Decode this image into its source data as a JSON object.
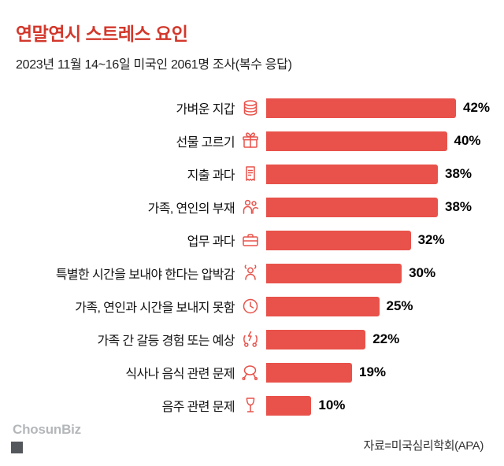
{
  "header": {
    "title": "연말연시 스트레스 요인",
    "subtitle": "2023년 11월 14~16일 미국인 2061명 조사(복수 응답)"
  },
  "chart_data": {
    "type": "bar",
    "orientation": "horizontal",
    "title": "연말연시 스트레스 요인",
    "categories": [
      "가벼운 지갑",
      "선물 고르기",
      "지출 과다",
      "가족, 연인의 부재",
      "업무 과다",
      "특별한 시간을 보내야 한다는 압박감",
      "가족, 연인과 시간을 보내지 못함",
      "가족 간 갈등 경험 또는 예상",
      "식사나 음식 관련 문제",
      "음주 관련 문제"
    ],
    "values": [
      42,
      40,
      38,
      38,
      32,
      30,
      25,
      22,
      19,
      10
    ],
    "value_labels": [
      "42%",
      "40%",
      "38%",
      "38%",
      "32%",
      "30%",
      "25%",
      "22%",
      "19%",
      "10%"
    ],
    "icons": [
      "coins-icon",
      "gift-icon",
      "receipt-icon",
      "people-icon",
      "briefcase-icon",
      "pressure-icon",
      "clock-icon",
      "conflict-icon",
      "turkey-icon",
      "wine-glass-icon"
    ],
    "unit": "%",
    "xlim": [
      0,
      42
    ],
    "bar_color": "#e8524a",
    "grid": false,
    "legend": false
  },
  "footer": {
    "logo_text": "ChosunBiz",
    "source": "자료=미국심리학회(APA)"
  }
}
